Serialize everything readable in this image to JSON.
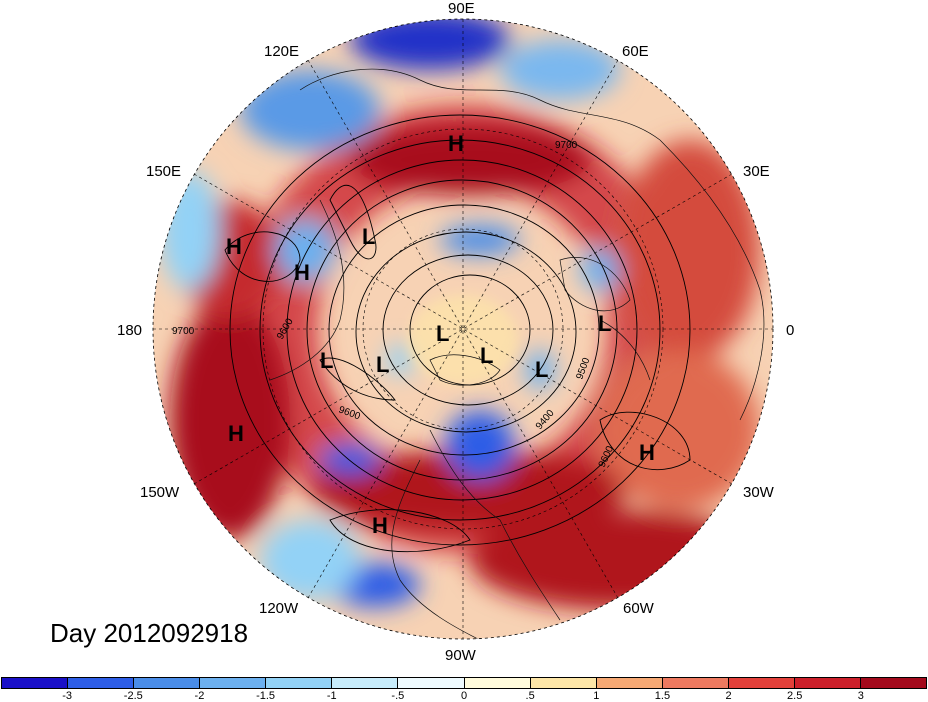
{
  "title": "Day 2012092918",
  "lon_labels": {
    "lon_90e": "90E",
    "lon_60e": "60E",
    "lon_120e": "120E",
    "lon_30e": "30E",
    "lon_150e": "150E",
    "lon_0": "0",
    "lon_180": "180",
    "lon_30w": "30W",
    "lon_150w": "150W",
    "lon_60w": "60W",
    "lon_120w": "120W",
    "lon_90w": "90W"
  },
  "pressure_centers": [
    "H",
    "H",
    "H",
    "H",
    "H",
    "H",
    "L",
    "L",
    "L",
    "L",
    "L",
    "L",
    "L"
  ],
  "contour_labels": [
    "9700",
    "9700",
    "9600",
    "9600",
    "9600",
    "9500",
    "9400"
  ],
  "colorbar": {
    "colors": [
      "#1a10c8",
      "#2d5de6",
      "#4a8de8",
      "#6cb0ef",
      "#93d2f6",
      "#c7ecfb",
      "#eefafe",
      "#fffbdc",
      "#fde6a8",
      "#f6a974",
      "#ee7a60",
      "#e3403a",
      "#cc1f2a",
      "#a30a1c"
    ],
    "ticks": [
      "-3",
      "-2.5",
      "-2",
      "-1.5",
      "-1",
      "-.5",
      "0",
      ".5",
      "1",
      "1.5",
      "2",
      "2.5",
      "3"
    ]
  }
}
